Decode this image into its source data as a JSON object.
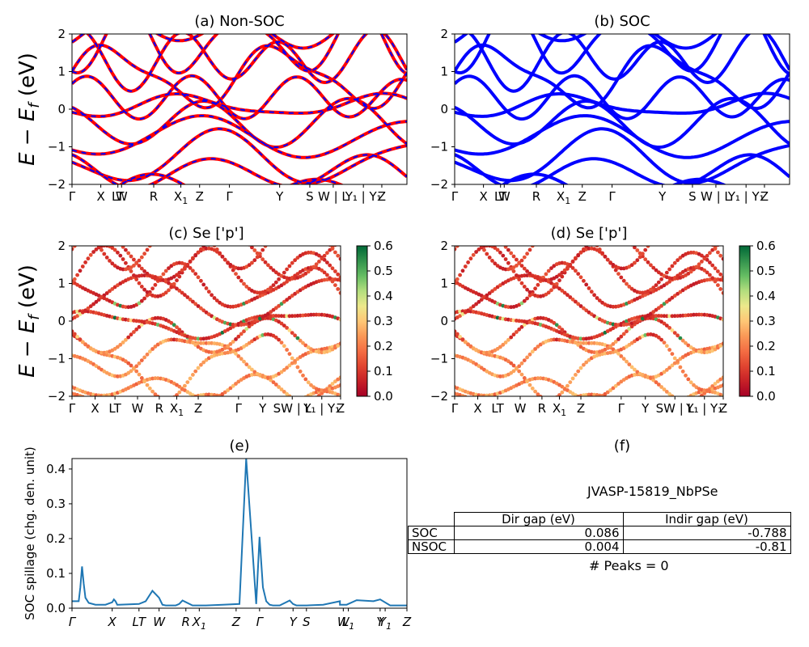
{
  "figure": {
    "panel_a_title": "(a) Non-SOC",
    "panel_b_title": "(b) SOC",
    "panel_c_title": "(c)  Se ['p']",
    "panel_d_title": "(d) Se ['p']",
    "panel_e_title": "(e)",
    "panel_f_title": "(f)"
  },
  "chart_data": [
    {
      "type": "line",
      "title": "(a) Non-SOC",
      "ylabel": "E − E_f (eV)",
      "ylim": [
        -2,
        2
      ],
      "yticks": [
        "−2",
        "−1",
        "0",
        "1",
        "2"
      ],
      "xticks": [
        "Γ",
        "X",
        "LT",
        "W",
        "R",
        "X1",
        "Z",
        "Γ",
        "Y",
        "S",
        "W | L",
        "Y1 | Y1",
        "Z"
      ],
      "series": [
        {
          "color": "#ff0000",
          "style": "solid"
        },
        {
          "color": "#0000ff",
          "style": "dashed"
        }
      ]
    },
    {
      "type": "line",
      "title": "(b) SOC",
      "ylim": [
        -2,
        2
      ],
      "yticks": [
        "−2",
        "−1",
        "0",
        "1",
        "2"
      ],
      "xticks": [
        "Γ",
        "X",
        "LT",
        "W",
        "R",
        "X1",
        "Z",
        "Γ",
        "Y",
        "S",
        "W | L",
        "Y1 | Y1",
        "Z"
      ],
      "series": [
        {
          "color": "#0000ff",
          "style": "solid"
        }
      ]
    },
    {
      "type": "scatter",
      "title": "(c)  Se ['p']",
      "ylabel": "E − E_f (eV)",
      "ylim": [
        -2,
        2
      ],
      "yticks": [
        "−2",
        "−1",
        "0",
        "1",
        "2"
      ],
      "xticks": [
        "Γ",
        "X",
        "LT",
        "W",
        "R",
        "X1",
        "Z",
        "Γ",
        "Y",
        "SW | L",
        "Y1 | Y1",
        "Z"
      ],
      "colorbar": {
        "min": 0.0,
        "max": 0.6,
        "ticks": [
          "0.0",
          "0.1",
          "0.2",
          "0.3",
          "0.4",
          "0.5",
          "0.6"
        ],
        "colormap": "RdYlGn"
      }
    },
    {
      "type": "scatter",
      "title": "(d) Se ['p']",
      "ylim": [
        -2,
        2
      ],
      "yticks": [
        "−2",
        "−1",
        "0",
        "1",
        "2"
      ],
      "xticks": [
        "Γ",
        "X",
        "LT",
        "W",
        "R",
        "X1",
        "Z",
        "Γ",
        "Y",
        "SW | L",
        "Y1 | Y1",
        "Z"
      ],
      "colorbar": {
        "min": 0.0,
        "max": 0.6,
        "ticks": [
          "0.0",
          "0.1",
          "0.2",
          "0.3",
          "0.4",
          "0.5",
          "0.6"
        ],
        "colormap": "RdYlGn"
      }
    },
    {
      "type": "line",
      "title": "(e)",
      "ylabel": "SOC spillage (chg. den. unit)",
      "ylim": [
        0,
        0.43
      ],
      "yticks": [
        "0.0",
        "0.1",
        "0.2",
        "0.3",
        "0.4"
      ],
      "xticks": [
        "Γ",
        "X",
        "LT",
        "W",
        "R",
        "X1",
        "Z",
        "Γ",
        "Y",
        "S",
        "W",
        "L1",
        "Y",
        "Y1",
        "Z"
      ],
      "x": [
        0,
        0.02,
        0.025,
        0.03,
        0.035,
        0.04,
        0.05,
        0.07,
        0.1,
        0.12,
        0.125,
        0.13,
        0.135,
        0.14,
        0.2,
        0.22,
        0.24,
        0.26,
        0.27,
        0.28,
        0.31,
        0.32,
        0.33,
        0.36,
        0.4,
        0.45,
        0.5,
        0.52,
        0.55,
        0.56,
        0.57,
        0.58,
        0.59,
        0.6,
        0.62,
        0.65,
        0.66,
        0.67,
        0.7,
        0.75,
        0.8,
        0.8,
        0.82,
        0.85,
        0.9,
        0.92,
        0.95,
        1.0
      ],
      "values": [
        0.02,
        0.02,
        0.06,
        0.12,
        0.07,
        0.03,
        0.015,
        0.01,
        0.01,
        0.017,
        0.025,
        0.02,
        0.01,
        0.01,
        0.012,
        0.02,
        0.05,
        0.03,
        0.01,
        0.008,
        0.008,
        0.012,
        0.022,
        0.008,
        0.008,
        0.01,
        0.012,
        0.43,
        0.012,
        0.205,
        0.06,
        0.02,
        0.01,
        0.008,
        0.008,
        0.022,
        0.012,
        0.008,
        0.008,
        0.01,
        0.02,
        0.01,
        0.01,
        0.023,
        0.02,
        0.025,
        0.008,
        0.008
      ],
      "series": [
        {
          "color": "#1f77b4"
        }
      ]
    }
  ],
  "table": {
    "title": "JVASP-15819_NbPSe",
    "headers": [
      "Dir gap (eV)",
      "Indir gap (eV)"
    ],
    "rows": [
      {
        "label": "SOC",
        "dir": "0.086",
        "indir": "-0.788"
      },
      {
        "label": "NSOC",
        "dir": "0.004",
        "indir": "-0.81"
      }
    ],
    "peaks": "# Peaks = 0"
  }
}
